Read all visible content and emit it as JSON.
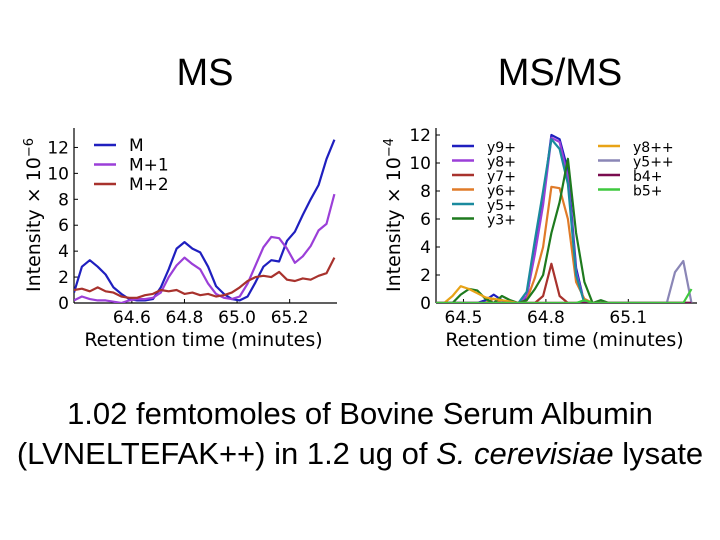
{
  "titles": {
    "left": "MS",
    "right": "MS/MS"
  },
  "caption": {
    "line1": "1.02 femtomoles of Bovine Serum Albumin",
    "line2_prefix": "(LVNELTEFAK++) in 1.2 ug of ",
    "line2_italic": "S. cerevisiae",
    "line2_suffix": " lysate"
  },
  "chart_data": [
    {
      "type": "line",
      "title": "MS",
      "xlabel": "Retention time (minutes)",
      "ylabel": "Intensity × 10",
      "ylabel_exp": "−6",
      "xlim": [
        64.38,
        65.38
      ],
      "ylim": [
        0,
        13.5
      ],
      "xticks": [
        64.6,
        64.8,
        65.0,
        65.2
      ],
      "xtick_labels": [
        "64.6",
        "64.8",
        "65.0",
        "65.2"
      ],
      "yticks": [
        0,
        2,
        4,
        6,
        8,
        10,
        12
      ],
      "ytick_labels": [
        "0",
        "2",
        "4",
        "6",
        "8",
        "10",
        "12"
      ],
      "grid": false,
      "legend_position": "top-left",
      "x": [
        64.38,
        64.41,
        64.44,
        64.47,
        64.5,
        64.53,
        64.56,
        64.59,
        64.62,
        64.65,
        64.68,
        64.71,
        64.74,
        64.77,
        64.8,
        64.83,
        64.86,
        64.89,
        64.92,
        64.95,
        64.98,
        65.01,
        65.04,
        65.07,
        65.1,
        65.13,
        65.16,
        65.19,
        65.22,
        65.25,
        65.28,
        65.31,
        65.34,
        65.37
      ],
      "series": [
        {
          "name": "M",
          "color": "#1f1fbf",
          "values": [
            0.8,
            2.8,
            3.3,
            2.8,
            2.2,
            1.2,
            0.7,
            0.3,
            0.2,
            0.2,
            0.3,
            1.2,
            2.6,
            4.2,
            4.7,
            4.2,
            3.9,
            2.8,
            1.3,
            0.7,
            0.3,
            0.2,
            0.5,
            1.6,
            2.8,
            3.3,
            3.2,
            4.8,
            5.5,
            6.8,
            8.0,
            9.1,
            11.1,
            12.6
          ]
        },
        {
          "name": "M+1",
          "color": "#9b3fd8",
          "values": [
            0.2,
            0.5,
            0.3,
            0.2,
            0.2,
            0.1,
            0.0,
            0.2,
            0.3,
            0.3,
            0.4,
            0.8,
            2.0,
            2.9,
            3.5,
            3.0,
            2.6,
            1.5,
            0.7,
            0.4,
            0.3,
            0.5,
            1.5,
            2.9,
            4.3,
            5.1,
            5.0,
            4.2,
            3.1,
            3.6,
            4.4,
            5.6,
            6.1,
            8.4
          ]
        },
        {
          "name": "M+2",
          "color": "#a8322d",
          "values": [
            1.0,
            1.1,
            0.9,
            1.2,
            0.9,
            0.8,
            0.5,
            0.4,
            0.4,
            0.6,
            0.7,
            1.0,
            0.9,
            1.0,
            0.7,
            0.8,
            0.6,
            0.7,
            0.5,
            0.6,
            0.8,
            1.2,
            1.7,
            2.0,
            2.1,
            2.0,
            2.4,
            1.8,
            1.7,
            1.9,
            1.8,
            2.1,
            2.3,
            3.5
          ]
        }
      ]
    },
    {
      "type": "line",
      "title": "MS/MS",
      "xlabel": "Retention time (minutes)",
      "ylabel": "Intensity × 10",
      "ylabel_exp": "−4",
      "xlim": [
        64.4,
        65.35
      ],
      "ylim": [
        0,
        12.5
      ],
      "xticks": [
        64.5,
        64.8,
        65.1
      ],
      "xtick_labels": [
        "64.5",
        "64.8",
        "65.1"
      ],
      "yticks": [
        0,
        2,
        4,
        6,
        8,
        10,
        12
      ],
      "ytick_labels": [
        "0",
        "2",
        "4",
        "6",
        "8",
        "10",
        "12"
      ],
      "grid": false,
      "legend_position": "top",
      "x": [
        64.4,
        64.43,
        64.46,
        64.49,
        64.52,
        64.55,
        64.58,
        64.61,
        64.64,
        64.67,
        64.7,
        64.73,
        64.76,
        64.79,
        64.82,
        64.85,
        64.88,
        64.91,
        64.94,
        64.97,
        65.0,
        65.03,
        65.06,
        65.09,
        65.12,
        65.15,
        65.18,
        65.21,
        65.24,
        65.27,
        65.3,
        65.33
      ],
      "series": [
        {
          "name": "y9+",
          "color": "#1f1fbf",
          "values": [
            0,
            0,
            0,
            0,
            0,
            0,
            0.2,
            0.6,
            0.2,
            0,
            0,
            0.3,
            4.0,
            7.5,
            12.0,
            11.7,
            9.5,
            2.5,
            0,
            0,
            0,
            0,
            0,
            0,
            0,
            0,
            0,
            0,
            0,
            0,
            0,
            0
          ]
        },
        {
          "name": "y8+",
          "color": "#9b3fd8",
          "values": [
            0,
            0,
            0,
            0,
            0,
            0,
            0,
            0,
            0,
            0,
            0,
            0.5,
            3.5,
            7.0,
            11.8,
            11.5,
            9.0,
            2.2,
            0,
            0,
            0,
            0,
            0,
            0,
            0,
            0,
            0,
            0,
            0,
            0,
            0,
            0
          ]
        },
        {
          "name": "y7+",
          "color": "#a8322d",
          "values": [
            0,
            0,
            0,
            0,
            0,
            0,
            0,
            0,
            0,
            0,
            0,
            0,
            0,
            0.5,
            2.8,
            0.5,
            0,
            0,
            0,
            0,
            0,
            0,
            0,
            0,
            0,
            0,
            0,
            0,
            0,
            0,
            0,
            0
          ]
        },
        {
          "name": "y6+",
          "color": "#e07b29",
          "values": [
            0,
            0,
            0,
            0,
            0,
            0,
            0,
            0.3,
            0,
            0,
            0,
            0.2,
            1.8,
            4.0,
            8.3,
            8.2,
            6.0,
            1.5,
            0.3,
            0,
            0,
            0,
            0,
            0,
            0,
            0,
            0,
            0,
            0,
            0,
            0,
            0
          ]
        },
        {
          "name": "y5+",
          "color": "#1a8a9e",
          "values": [
            0,
            0,
            0,
            0,
            0,
            0,
            0,
            0,
            0,
            0,
            0,
            0.8,
            4.5,
            8.0,
            11.7,
            11.0,
            8.5,
            2.0,
            0,
            0,
            0,
            0,
            0,
            0,
            0,
            0,
            0,
            0,
            0,
            0,
            0,
            0
          ]
        },
        {
          "name": "y3+",
          "color": "#1e7a1e",
          "values": [
            0,
            0,
            0,
            0.6,
            1.0,
            0.9,
            0.3,
            0,
            0.5,
            0.2,
            0,
            0.2,
            1.0,
            2.0,
            5.0,
            7.2,
            10.3,
            5.0,
            1.5,
            0,
            0.2,
            0,
            0,
            0,
            0,
            0,
            0,
            0,
            0,
            0,
            0,
            0
          ]
        },
        {
          "name": "y8++",
          "color": "#e8a317",
          "values": [
            0,
            0,
            0.5,
            1.2,
            1.0,
            0.7,
            0.4,
            0.3,
            0.2,
            0.1,
            0,
            0,
            0,
            0,
            0,
            0,
            0,
            0,
            0,
            0,
            0,
            0,
            0,
            0,
            0,
            0,
            0,
            0,
            0,
            0,
            0,
            0
          ]
        },
        {
          "name": "y5++",
          "color": "#8a86b6",
          "values": [
            0,
            0,
            0,
            0,
            0,
            0,
            0,
            0,
            0,
            0,
            0,
            0,
            0,
            0,
            0,
            0,
            0,
            0,
            0,
            0,
            0,
            0,
            0,
            0,
            0,
            0,
            0,
            0,
            0,
            2.2,
            3.0,
            0
          ]
        },
        {
          "name": "b4+",
          "color": "#7a0c4f",
          "values": [
            0,
            0,
            0,
            0,
            0,
            0,
            0,
            0,
            0,
            0,
            0,
            0,
            0,
            0,
            0,
            0,
            0,
            0,
            0,
            0,
            0,
            0,
            0,
            0,
            0,
            0,
            0,
            0,
            0,
            0,
            0,
            0
          ]
        },
        {
          "name": "b5+",
          "color": "#3fc83f",
          "values": [
            0,
            0,
            0,
            0,
            0,
            0,
            0,
            0,
            0,
            0,
            0,
            0,
            0,
            0,
            0,
            0,
            0,
            0,
            0.2,
            0,
            0,
            0,
            0,
            0,
            0,
            0,
            0,
            0,
            0,
            0,
            0,
            1.0
          ]
        }
      ]
    }
  ]
}
